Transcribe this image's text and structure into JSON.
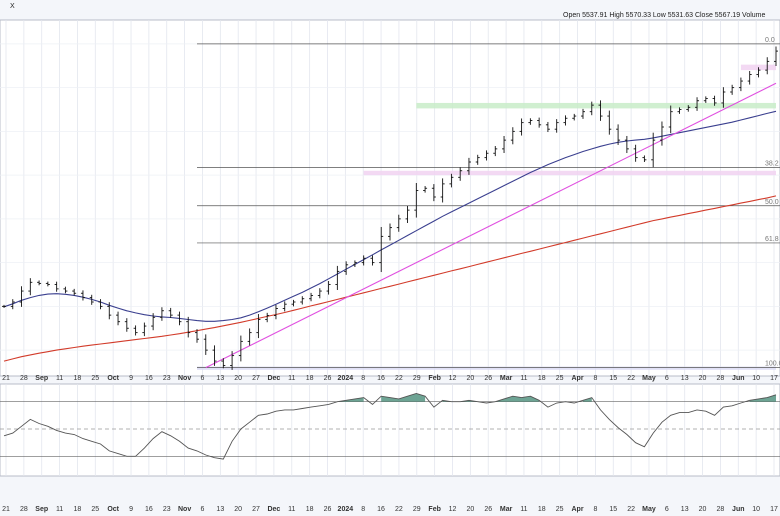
{
  "header": {
    "symbol_fragment": "X",
    "ohlc_text": "Open 5537.91  High 5570.33  Low 5531.63  Close 5567.19  Volume"
  },
  "fib_labels": [
    "0.0",
    "38.2",
    "50.0",
    "61.8",
    "100.0"
  ],
  "x_tick_labels": [
    "21",
    "28",
    "Sep",
    "11",
    "18",
    "25",
    "Oct",
    "9",
    "16",
    "23",
    "Nov",
    "6",
    "13",
    "20",
    "27",
    "Dec",
    "11",
    "18",
    "26",
    "2024",
    "8",
    "16",
    "22",
    "29",
    "Feb",
    "12",
    "20",
    "26",
    "Mar",
    "11",
    "18",
    "25",
    "Apr",
    "8",
    "15",
    "22",
    "May",
    "6",
    "13",
    "20",
    "28",
    "Jun",
    "10",
    "17"
  ],
  "bold_ticks": [
    "Sep",
    "Oct",
    "Nov",
    "Dec",
    "2024",
    "Feb",
    "Mar",
    "Apr",
    "May",
    "Jun"
  ],
  "colors": {
    "price_bar": "#111111",
    "ma_short": "#3a3f8f",
    "ma_long": "#d23b2a",
    "trendline": "#e050e0",
    "green_band": "#c8ecc8",
    "pink_band": "#f1d2f1",
    "lavender_band": "#dcdcf4",
    "rsi_line": "#555555",
    "rsi_fill": "#5e9a88"
  },
  "chart_data": [
    {
      "type": "line",
      "series": [
        {
          "values": [
            4400,
            4420,
            4470,
            4510,
            4505,
            4500,
            4480,
            4470,
            4460,
            4440,
            4420,
            4400,
            4360,
            4330,
            4300,
            4280,
            4310,
            4350,
            4380,
            4360,
            4330,
            4280,
            4250,
            4200,
            4150,
            4130,
            4175,
            4240,
            4280,
            4340,
            4358,
            4390,
            4410,
            4420,
            4435,
            4450,
            4470,
            4500,
            4560,
            4590,
            4600,
            4620,
            4600,
            4720,
            4760,
            4800,
            4840,
            4930,
            4940,
            4900,
            4960,
            4990,
            5020,
            5060,
            5080,
            5100,
            5120,
            5160,
            5200,
            5240,
            5250,
            5230,
            5210,
            5240,
            5260,
            5270,
            5290,
            5320,
            5270,
            5210,
            5160,
            5120,
            5080,
            5070,
            5160,
            5220,
            5290,
            5300,
            5310,
            5340,
            5350,
            5330,
            5380,
            5400,
            5430,
            5460,
            5480,
            5520,
            5567
          ]
        },
        {
          "values": [
            4398,
            4412,
            4428,
            4440,
            4450,
            4456,
            4458,
            4455,
            4450,
            4442,
            4432,
            4420,
            4405,
            4392,
            4380,
            4370,
            4362,
            4356,
            4352,
            4349,
            4345,
            4340,
            4335,
            4332,
            4332,
            4335,
            4340,
            4348,
            4360,
            4375,
            4392,
            4410,
            4428,
            4446,
            4464,
            4484,
            4504,
            4526,
            4548,
            4570,
            4592,
            4614,
            4636,
            4658,
            4680,
            4702,
            4724,
            4746,
            4768,
            4790,
            4812,
            4832,
            4852,
            4872,
            4892,
            4912,
            4932,
            4952,
            4972,
            4992,
            5012,
            5030,
            5048,
            5064,
            5080,
            5094,
            5108,
            5120,
            5132,
            5142,
            5150,
            5156,
            5160,
            5164,
            5170,
            5178,
            5186,
            5194,
            5202,
            5210,
            5218,
            5226,
            5234,
            5242,
            5252,
            5262,
            5272,
            5282,
            5292
          ]
        },
        {
          "values": [
            4150,
            4160,
            4170,
            4178,
            4186,
            4193,
            4200,
            4206,
            4212,
            4218,
            4223,
            4228,
            4233,
            4238,
            4243,
            4248,
            4253,
            4258,
            4263,
            4269,
            4275,
            4282,
            4289,
            4296,
            4303,
            4311,
            4319,
            4327,
            4336,
            4345,
            4354,
            4363,
            4372,
            4382,
            4392,
            4402,
            4412,
            4422,
            4432,
            4442,
            4452,
            4462,
            4472,
            4482,
            4492,
            4502,
            4512,
            4522,
            4532,
            4542,
            4552,
            4562,
            4572,
            4582,
            4592,
            4602,
            4612,
            4622,
            4632,
            4642,
            4652,
            4662,
            4672,
            4682,
            4692,
            4702,
            4712,
            4722,
            4732,
            4742,
            4752,
            4762,
            4772,
            4782,
            4792,
            4800,
            4808,
            4816,
            4824,
            4832,
            4840,
            4848,
            4856,
            4864,
            4872,
            4880,
            4888,
            4896,
            4905
          ]
        }
      ],
      "y_scale": {
        "min": 4100,
        "max": 5700
      },
      "levels": [
        {
          "label": "0.0",
          "value": 5600
        },
        {
          "label": "38.2",
          "value": 5035
        },
        {
          "label": "50.0",
          "value": 4860
        },
        {
          "label": "61.8",
          "value": 4690
        },
        {
          "label": "100.0",
          "value": 4120
        }
      ],
      "trendlines": [
        {
          "from": [
            23,
            4120
          ],
          "to": [
            88,
            5420
          ]
        }
      ],
      "zones": [
        {
          "band": "green",
          "x_from": 47,
          "x_to": 88,
          "y_top": 5330,
          "y_bottom": 5305
        },
        {
          "band": "pink",
          "x_from": 41,
          "x_to": 88,
          "y_top": 5020,
          "y_bottom": 5000
        },
        {
          "band": "pink",
          "x_from": 84,
          "x_to": 88,
          "y_top": 5505,
          "y_bottom": 5480
        },
        {
          "band": "lavender",
          "x_from": 22,
          "x_to": 88,
          "y_top": 4125,
          "y_bottom": 4110
        }
      ]
    },
    {
      "type": "line",
      "y_scale": {
        "min": 20,
        "max": 80
      },
      "levels": [
        70,
        50,
        30
      ],
      "values": [
        45,
        47,
        52,
        57,
        54,
        52,
        49,
        47,
        46,
        43,
        41,
        39,
        34,
        32,
        30,
        30,
        36,
        43,
        48,
        45,
        41,
        36,
        34,
        31,
        29,
        28,
        41,
        50,
        55,
        60,
        61,
        63,
        64,
        64,
        65,
        66,
        67,
        68,
        70,
        71,
        72,
        73,
        68,
        74,
        73,
        72,
        74,
        76,
        74,
        66,
        71,
        70,
        70,
        71,
        70,
        69,
        70,
        72,
        74,
        73,
        74,
        71,
        66,
        69,
        70,
        69,
        71,
        73,
        64,
        57,
        51,
        46,
        40,
        37,
        47,
        55,
        60,
        62,
        62,
        64,
        63,
        60,
        66,
        67,
        69,
        71,
        72,
        73,
        75
      ]
    }
  ]
}
